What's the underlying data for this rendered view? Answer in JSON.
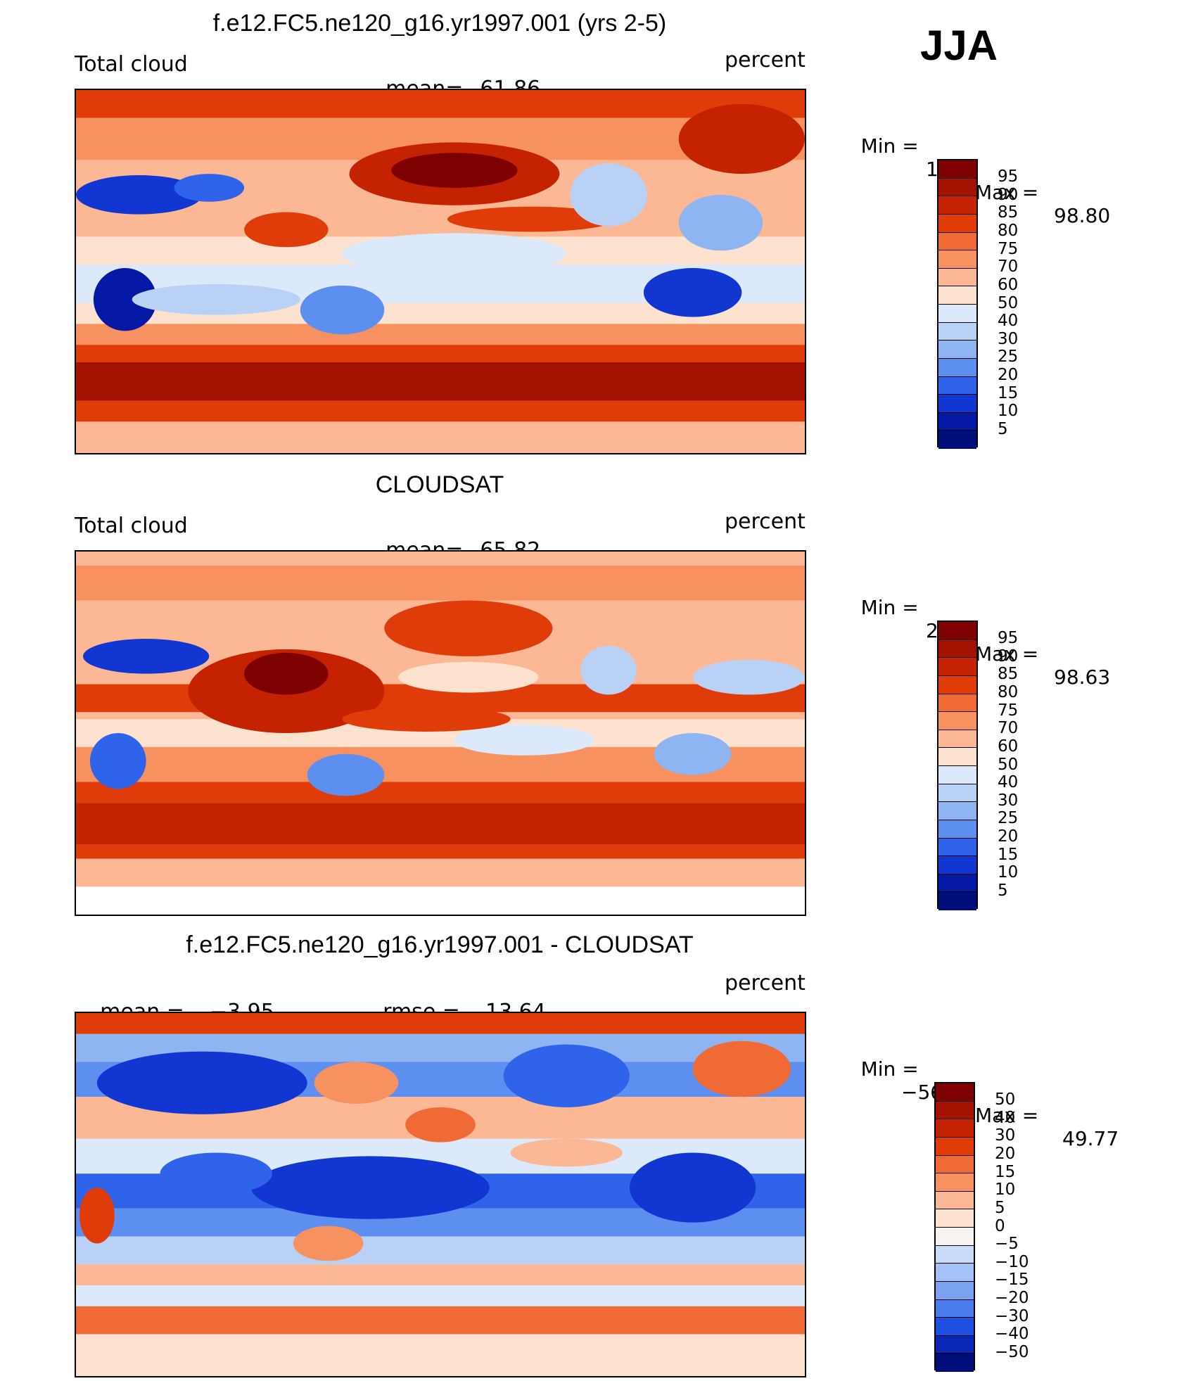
{
  "season": "JJA",
  "panels": [
    {
      "title": "f.e12.FC5.ne120_g16.yr1997.001 (yrs 2-5)",
      "left_label": "Total cloud",
      "mid_label": "mean=",
      "mid_value": "61.86",
      "right_label": "percent",
      "min_label": "Min =",
      "min_value": "1.75",
      "max_label": "Max =",
      "max_value": "98.80",
      "colorbar": {
        "labels": [
          "95",
          "90",
          "85",
          "80",
          "75",
          "70",
          "60",
          "50",
          "40",
          "30",
          "25",
          "20",
          "15",
          "10",
          "5"
        ],
        "colors": [
          "#7f0000",
          "#a31200",
          "#c42200",
          "#e03c0a",
          "#f06a35",
          "#f89160",
          "#fcb795",
          "#fde3cf",
          "#dce9fa",
          "#bad1f6",
          "#8fb4f2",
          "#5d8ff0",
          "#2f63e9",
          "#1236d1",
          "#0618a6",
          "#000e7a"
        ]
      }
    },
    {
      "title": "CLOUDSAT",
      "left_label": "Total cloud",
      "mid_label": "mean=",
      "mid_value": "65.82",
      "right_label": "percent",
      "min_label": "Min =",
      "min_value": "2.52",
      "max_label": "Max =",
      "max_value": "98.63",
      "colorbar": {
        "labels": [
          "95",
          "90",
          "85",
          "80",
          "75",
          "70",
          "60",
          "50",
          "40",
          "30",
          "25",
          "20",
          "15",
          "10",
          "5"
        ],
        "colors": [
          "#7f0000",
          "#a31200",
          "#c42200",
          "#e03c0a",
          "#f06a35",
          "#f89160",
          "#fcb795",
          "#fde3cf",
          "#dce9fa",
          "#bad1f6",
          "#8fb4f2",
          "#5d8ff0",
          "#2f63e9",
          "#1236d1",
          "#0618a6",
          "#000e7a"
        ]
      }
    },
    {
      "title": "f.e12.FC5.ne120_g16.yr1997.001 - CLOUDSAT",
      "left_label": "mean =",
      "left_value": "−3.95",
      "mid_label": "rmse =",
      "mid_value": "13.64",
      "right_label": "percent",
      "min_label": "Min =",
      "min_value": "−56.03",
      "max_label": "Max =",
      "max_value": "49.77",
      "colorbar": {
        "labels": [
          "50",
          "40",
          "30",
          "20",
          "15",
          "10",
          "5",
          "0",
          "−5",
          "−10",
          "−15",
          "−20",
          "−30",
          "−40",
          "−50"
        ],
        "colors": [
          "#7f0000",
          "#a31200",
          "#c42200",
          "#e03c0a",
          "#f06a35",
          "#f89160",
          "#fcb795",
          "#fde3cf",
          "#f6f3f0",
          "#c9dcf8",
          "#a3c2f5",
          "#7ba3f2",
          "#4a7ced",
          "#1e4fe0",
          "#0a27b8",
          "#000e7a"
        ]
      }
    }
  ]
}
